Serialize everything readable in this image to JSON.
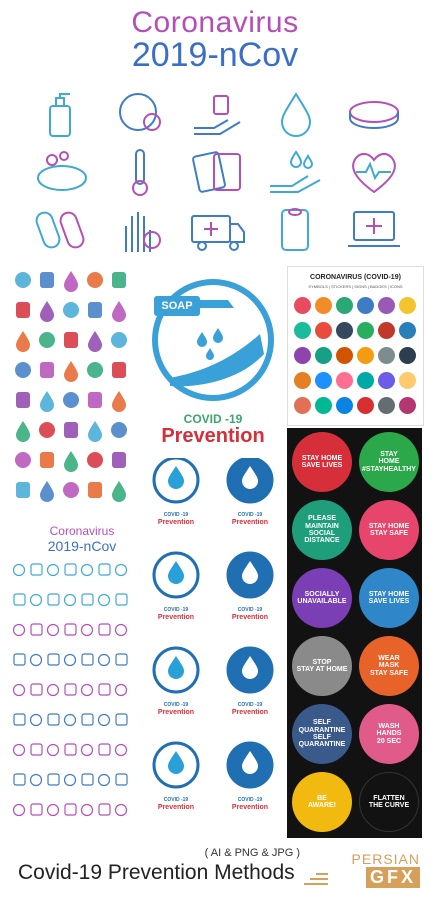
{
  "hero": {
    "title_line1": "Coronavirus",
    "title_line2": "2019-nCov",
    "icons": [
      "soap-pump-icon",
      "virus-globe-icon",
      "hand-pills-icon",
      "drop-icon",
      "petri-dish-icon",
      "soap-bar-icon",
      "thermometer-icon",
      "pill-blister-icon",
      "hand-drops-icon",
      "heart-pulse-icon",
      "capsule-icon",
      "virus-hand-icon",
      "ambulance-icon",
      "paper-towel-icon",
      "laptop-medical-icon"
    ]
  },
  "mid_col": {
    "soap_label": "SOAP",
    "big_prevention_small": "COVID -19",
    "big_prevention": "Prevention",
    "small_logos": [
      {
        "line1": "COVID -19",
        "line2": "Prevention"
      },
      {
        "line1": "COVID -19",
        "line2": "Prevention"
      },
      {
        "line1": "COVID -19",
        "line2": "Prevention"
      },
      {
        "line1": "COVID -19",
        "line2": "Prevention"
      },
      {
        "line1": "COVID -19",
        "line2": "Prevention"
      },
      {
        "line1": "COVID -19",
        "line2": "Prevention"
      },
      {
        "line1": "COVID -19",
        "line2": "Prevention"
      },
      {
        "line1": "COVID -19",
        "line2": "Prevention"
      }
    ]
  },
  "left_col": {
    "mini_title_line1": "Coronavirus",
    "mini_title_line2": "2019-nCov"
  },
  "sticker_panel": {
    "title": "CORONAVIRUS (COVID-19)",
    "subtitle": "SYMBOLS | STICKERS | SIGNS | BADGES | ICONS",
    "colors": [
      "#e84a5f",
      "#f28c28",
      "#2aa876",
      "#3f7cc4",
      "#9b59b6",
      "#f4c430",
      "#1abc9c",
      "#e74c3c",
      "#34495e",
      "#27ae60",
      "#c0392b",
      "#2980b9",
      "#8e44ad",
      "#16a085",
      "#d35400",
      "#f39c12",
      "#7f8c8d",
      "#2c3e50",
      "#e67e22",
      "#1e90ff",
      "#ff6f91",
      "#00a8a8",
      "#6c5ce7",
      "#fdcb6e",
      "#e17055",
      "#00b894",
      "#0984e3",
      "#d63031",
      "#636e72",
      "#b33771"
    ]
  },
  "dark_panel": {
    "stickers": [
      {
        "text": "STAY HOME\nSAVE LIVES",
        "color": "#d62f3a"
      },
      {
        "text": "STAY\nHOME\n#STAYHEALTHY",
        "color": "#2aa84a"
      },
      {
        "text": "PLEASE\nMAINTAIN\nSOCIAL\nDISTANCE",
        "color": "#1e9e7b"
      },
      {
        "text": "STAY HOME\nSTAY SAFE",
        "color": "#e7456b"
      },
      {
        "text": "SOCIALLY\nUNAVAILABLE",
        "color": "#7b3fb5"
      },
      {
        "text": "STAY HOME\nSAVE LIVES",
        "color": "#2f86c8"
      },
      {
        "text": "STOP\nSTAY AT HOME",
        "color": "#8a8a8a"
      },
      {
        "text": "WEAR\nMASK\nSTAY SAFE",
        "color": "#e8632a"
      },
      {
        "text": "SELF QUARANTINE\nSELF QUARANTINE",
        "color": "#3a5a8c"
      },
      {
        "text": "WASH\nHANDS\n20 SEC",
        "color": "#e05a8a"
      },
      {
        "text": "BE\nAWARE!",
        "color": "#f2b90f"
      },
      {
        "text": "FLATTEN\nTHE CURVE",
        "color": "#121212"
      }
    ]
  },
  "footer": {
    "formats": "( AI & PNG & JPG )",
    "title": "Covid-19 Prevention Methods",
    "brand_top": "PERSIAN",
    "brand_bottom": "GFX"
  }
}
